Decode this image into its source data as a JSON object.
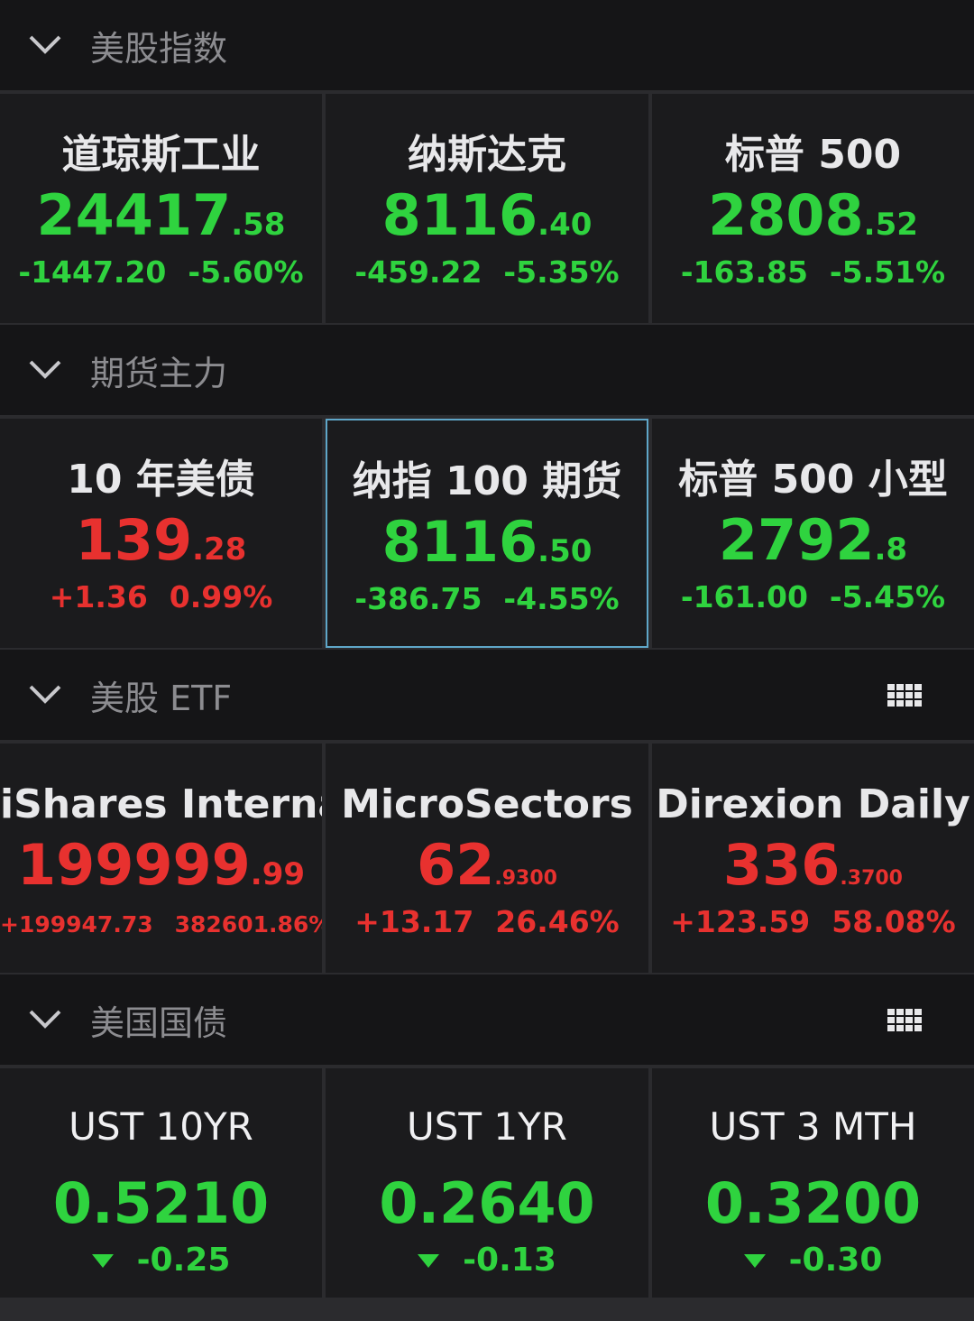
{
  "sections": [
    {
      "title": "美股指数",
      "layout": "quote",
      "icon": false,
      "tiles": [
        {
          "name": "道琼斯工业",
          "price_int": "24417",
          "price_dec": ".58",
          "change": "-1447.20",
          "pct": "-5.60%",
          "color": "#2fd33f",
          "selected": false
        },
        {
          "name": "纳斯达克",
          "price_int": "8116",
          "price_dec": ".40",
          "change": "-459.22",
          "pct": "-5.35%",
          "color": "#2fd33f",
          "selected": false
        },
        {
          "name": "标普 500",
          "price_int": "2808",
          "price_dec": ".52",
          "change": "-163.85",
          "pct": "-5.51%",
          "color": "#2fd33f",
          "selected": false
        }
      ]
    },
    {
      "title": "期货主力",
      "layout": "quote",
      "icon": false,
      "tiles": [
        {
          "name": "10 年美债",
          "price_int": "139",
          "price_dec": ".28",
          "change": "+1.36",
          "pct": "0.99%",
          "color": "#e8312f",
          "selected": false
        },
        {
          "name": "纳指 100 期货",
          "price_int": "8116",
          "price_dec": ".50",
          "change": "-386.75",
          "pct": "-4.55%",
          "color": "#2fd33f",
          "selected": true
        },
        {
          "name": "标普 500 小型",
          "price_int": "2792",
          "price_dec": ".8",
          "change": "-161.00",
          "pct": "-5.45%",
          "color": "#2fd33f",
          "selected": false
        }
      ]
    },
    {
      "title": "美股 ETF",
      "layout": "quote",
      "icon": true,
      "tiles": [
        {
          "name": "iShares Interna",
          "price_int": "199999",
          "price_dec": ".99",
          "change": "+199947.73",
          "pct": "382601.86%",
          "color": "#e8312f",
          "selected": false
        },
        {
          "name": "MicroSectors",
          "price_int": "62",
          "price_dec": ".9300",
          "change": "+13.17",
          "pct": "26.46%",
          "color": "#e8312f",
          "selected": false
        },
        {
          "name": "Direxion Daily",
          "price_int": "336",
          "price_dec": ".3700",
          "change": "+123.59",
          "pct": "58.08%",
          "color": "#e8312f",
          "selected": false
        }
      ]
    },
    {
      "title": "美国国债",
      "layout": "rate",
      "icon": true,
      "tiles": [
        {
          "name": "UST 10YR",
          "value": "0.5210",
          "change": "-0.25",
          "color": "#2fd33f",
          "selected": false
        },
        {
          "name": "UST 1YR",
          "value": "0.2640",
          "change": "-0.13",
          "color": "#2fd33f",
          "selected": false
        },
        {
          "name": "UST 3 MTH",
          "value": "0.3200",
          "change": "-0.30",
          "color": "#2fd33f",
          "selected": false
        }
      ]
    }
  ]
}
